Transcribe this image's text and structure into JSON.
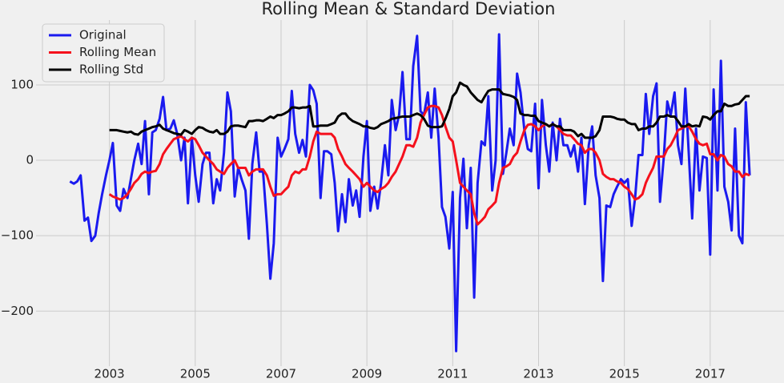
{
  "chart_data": {
    "type": "line",
    "title": "Rolling Mean & Standard Deviation",
    "x": [
      2002.08,
      2002.17,
      2002.25,
      2002.33,
      2002.42,
      2002.5,
      2002.58,
      2002.67,
      2002.75,
      2002.83,
      2002.92,
      2003,
      2003.08,
      2003.17,
      2003.25,
      2003.33,
      2003.42,
      2003.5,
      2003.58,
      2003.67,
      2003.75,
      2003.83,
      2003.92,
      2004,
      2004.08,
      2004.17,
      2004.25,
      2004.33,
      2004.42,
      2004.5,
      2004.58,
      2004.67,
      2004.75,
      2004.83,
      2004.92,
      2005,
      2005.08,
      2005.17,
      2005.25,
      2005.33,
      2005.42,
      2005.5,
      2005.58,
      2005.67,
      2005.75,
      2005.83,
      2005.92,
      2006,
      2006.08,
      2006.17,
      2006.25,
      2006.33,
      2006.42,
      2006.5,
      2006.58,
      2006.67,
      2006.75,
      2006.83,
      2006.92,
      2007,
      2007.08,
      2007.17,
      2007.25,
      2007.33,
      2007.42,
      2007.5,
      2007.58,
      2007.67,
      2007.75,
      2007.83,
      2007.92,
      2008,
      2008.08,
      2008.17,
      2008.25,
      2008.33,
      2008.42,
      2008.5,
      2008.58,
      2008.67,
      2008.75,
      2008.83,
      2008.92,
      2009,
      2009.08,
      2009.17,
      2009.25,
      2009.33,
      2009.42,
      2009.5,
      2009.58,
      2009.67,
      2009.75,
      2009.83,
      2009.92,
      2010,
      2010.08,
      2010.17,
      2010.25,
      2010.33,
      2010.42,
      2010.5,
      2010.58,
      2010.67,
      2010.75,
      2010.83,
      2010.92,
      2011,
      2011.08,
      2011.17,
      2011.25,
      2011.33,
      2011.42,
      2011.5,
      2011.58,
      2011.67,
      2011.75,
      2011.83,
      2011.92,
      2012,
      2012.08,
      2012.17,
      2012.25,
      2012.33,
      2012.42,
      2012.5,
      2012.58,
      2012.67,
      2012.75,
      2012.83,
      2012.92,
      2013,
      2013.08,
      2013.17,
      2013.25,
      2013.33,
      2013.42,
      2013.5,
      2013.58,
      2013.67,
      2013.75,
      2013.83,
      2013.92,
      2014,
      2014.08,
      2014.17,
      2014.25,
      2014.33,
      2014.42,
      2014.5,
      2014.58,
      2014.67,
      2014.75,
      2014.83,
      2014.92,
      2015,
      2015.08,
      2015.17,
      2015.25,
      2015.33,
      2015.42,
      2015.5,
      2015.58,
      2015.67,
      2015.75,
      2015.83,
      2015.92,
      2016,
      2016.08,
      2016.17,
      2016.25,
      2016.33,
      2016.42,
      2016.5,
      2016.58,
      2016.67,
      2016.75,
      2016.83,
      2016.92,
      2017,
      2017.08,
      2017.17,
      2017.25,
      2017.33,
      2017.42,
      2017.5,
      2017.58,
      2017.67,
      2017.75,
      2017.83,
      2017.92
    ],
    "series": [
      {
        "name": "Original",
        "color": "#1a1aef",
        "values": [
          -28,
          -31,
          -28,
          -20,
          -80,
          -76,
          -107,
          -100,
          -70,
          -45,
          -20,
          0,
          23,
          -60,
          -67,
          -38,
          -50,
          -25,
          0,
          22,
          -5,
          52,
          -45,
          37,
          40,
          55,
          84,
          40,
          42,
          53,
          35,
          0,
          30,
          -57,
          30,
          -20,
          -55,
          -5,
          10,
          10,
          -57,
          -25,
          -40,
          10,
          90,
          65,
          -48,
          -10,
          -25,
          -40,
          -104,
          -5,
          37,
          -15,
          -15,
          -85,
          -157,
          -110,
          30,
          5,
          15,
          28,
          92,
          35,
          10,
          27,
          5,
          100,
          93,
          75,
          -50,
          12,
          12,
          8,
          -30,
          -94,
          -45,
          -82,
          -25,
          -60,
          -40,
          -75,
          5,
          52,
          -67,
          -35,
          -64,
          -30,
          20,
          -20,
          80,
          40,
          60,
          117,
          28,
          28,
          125,
          165,
          65,
          60,
          90,
          30,
          95,
          30,
          -62,
          -75,
          -117,
          -42,
          -253,
          -50,
          2,
          -90,
          -10,
          -182,
          -30,
          25,
          20,
          85,
          -40,
          0,
          167,
          -18,
          10,
          42,
          20,
          115,
          90,
          40,
          15,
          12,
          75,
          -37,
          80,
          20,
          -15,
          50,
          0,
          55,
          20,
          20,
          5,
          20,
          -15,
          30,
          -58,
          20,
          45,
          -20,
          -50,
          -160,
          -60,
          -62,
          -45,
          -35,
          -25,
          -30,
          -25,
          -87,
          -50,
          7,
          7,
          88,
          35,
          85,
          102,
          -55,
          5,
          78,
          60,
          90,
          20,
          -5,
          95,
          10,
          -77,
          42,
          -40,
          5,
          3,
          -125,
          94,
          -40,
          132,
          -35,
          -55,
          -93,
          42,
          -100,
          -110,
          77,
          -20
        ]
      },
      {
        "name": "Rolling Mean",
        "color": "#f5101c",
        "values": [
          null,
          null,
          null,
          null,
          null,
          null,
          null,
          null,
          null,
          null,
          null,
          -45,
          -48,
          -50,
          -52,
          -50,
          -45,
          -38,
          -30,
          -25,
          -18,
          -15,
          -17,
          -15,
          -14,
          -5,
          8,
          15,
          22,
          28,
          30,
          32,
          28,
          25,
          30,
          28,
          20,
          10,
          5,
          0,
          -5,
          -12,
          -15,
          -18,
          -10,
          -5,
          0,
          -10,
          -10,
          -10,
          -20,
          -15,
          -12,
          -12,
          -12,
          -20,
          -35,
          -47,
          -45,
          -45,
          -40,
          -35,
          -20,
          -15,
          -17,
          -12,
          -12,
          5,
          25,
          38,
          35,
          35,
          35,
          35,
          30,
          15,
          5,
          -5,
          -10,
          -15,
          -20,
          -25,
          -35,
          -30,
          -35,
          -40,
          -42,
          -38,
          -35,
          -30,
          -22,
          -15,
          -5,
          5,
          20,
          20,
          18,
          30,
          50,
          60,
          70,
          72,
          72,
          70,
          60,
          45,
          30,
          25,
          0,
          -30,
          -35,
          -40,
          -45,
          -70,
          -85,
          -80,
          -75,
          -65,
          -60,
          -55,
          -30,
          -10,
          -8,
          -5,
          5,
          10,
          25,
          40,
          47,
          48,
          45,
          40,
          45,
          48,
          45,
          48,
          45,
          40,
          35,
          33,
          33,
          28,
          22,
          20,
          10,
          15,
          15,
          10,
          0,
          -18,
          -22,
          -25,
          -25,
          -28,
          -30,
          -35,
          -38,
          -45,
          -52,
          -50,
          -45,
          -30,
          -20,
          -10,
          5,
          5,
          5,
          15,
          20,
          30,
          40,
          42,
          45,
          45,
          38,
          28,
          22,
          20,
          22,
          8,
          8,
          0,
          7,
          5,
          -5,
          -8,
          -15,
          -15,
          -22,
          -18,
          -20
        ]
      },
      {
        "name": "Rolling Std",
        "color": "#000000",
        "values": [
          null,
          null,
          null,
          null,
          null,
          null,
          null,
          null,
          null,
          null,
          null,
          40,
          40,
          40,
          39,
          38,
          37,
          38,
          35,
          34,
          38,
          40,
          42,
          44,
          45,
          47,
          42,
          40,
          38,
          36,
          35,
          34,
          40,
          38,
          35,
          40,
          44,
          43,
          40,
          38,
          37,
          40,
          35,
          35,
          38,
          45,
          46,
          46,
          45,
          44,
          52,
          52,
          53,
          53,
          52,
          55,
          58,
          56,
          60,
          60,
          62,
          65,
          70,
          70,
          69,
          70,
          70,
          72,
          45,
          45,
          46,
          46,
          46,
          48,
          50,
          58,
          62,
          62,
          56,
          52,
          50,
          48,
          45,
          45,
          43,
          42,
          44,
          48,
          50,
          52,
          55,
          56,
          57,
          58,
          58,
          58,
          60,
          62,
          60,
          55,
          46,
          44,
          44,
          44,
          45,
          55,
          68,
          85,
          90,
          103,
          100,
          98,
          90,
          85,
          80,
          77,
          85,
          92,
          94,
          94,
          94,
          88,
          87,
          86,
          84,
          80,
          62,
          60,
          60,
          59,
          59,
          52,
          50,
          48,
          45,
          48,
          45,
          45,
          40,
          40,
          40,
          38,
          32,
          35,
          30,
          30,
          30,
          32,
          40,
          58,
          58,
          58,
          57,
          55,
          54,
          54,
          50,
          48,
          48,
          40,
          42,
          42,
          45,
          45,
          50,
          58,
          58,
          60,
          58,
          58,
          52,
          45,
          45,
          48,
          45,
          46,
          45,
          58,
          57,
          54,
          60,
          65,
          65,
          75,
          72,
          72,
          74,
          75,
          80,
          85,
          85
        ]
      }
    ],
    "xlim": [
      2001.29,
      2018.72
    ],
    "xticks": [
      2003,
      2005,
      2007,
      2009,
      2011,
      2013,
      2015,
      2017
    ],
    "ylim": [
      -273,
      186
    ],
    "yticks": [
      {
        "value": -200,
        "label": "−200"
      },
      {
        "value": -100,
        "label": "−100"
      },
      0,
      100
    ],
    "grid": true,
    "legend": "upper left"
  }
}
